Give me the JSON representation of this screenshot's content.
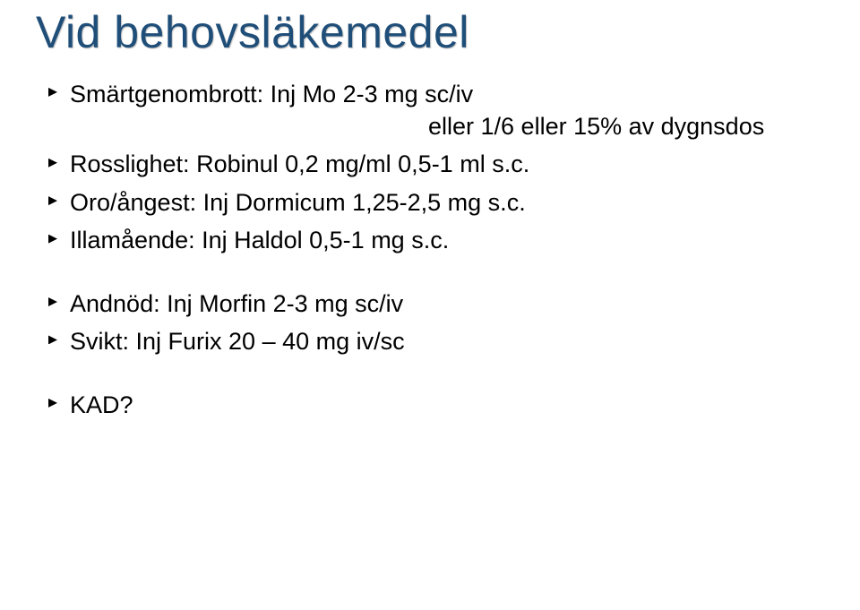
{
  "title": "Vid behovsläkemedel",
  "title_color": "#1f4e79",
  "title_fontsize": 50,
  "body_fontsize": 27,
  "body_color": "#000000",
  "background_color": "#ffffff",
  "bullet_color": "#000000",
  "items": {
    "b0_line1": "Smärtgenombrott: Inj Mo 2-3 mg sc/iv",
    "b0_line2": "eller 1/6 eller 15% av dygnsdos",
    "b1": "Rosslighet: Robinul 0,2 mg/ml 0,5-1 ml s.c.",
    "b2": "Oro/ångest: Inj Dormicum 1,25-2,5 mg s.c.",
    "b3": "Illamående: Inj Haldol 0,5-1 mg s.c.",
    "b4": "Andnöd: Inj Morfin 2-3 mg sc/iv",
    "b5": "Svikt: Inj Furix 20 – 40 mg iv/sc",
    "b6": "KAD?"
  }
}
